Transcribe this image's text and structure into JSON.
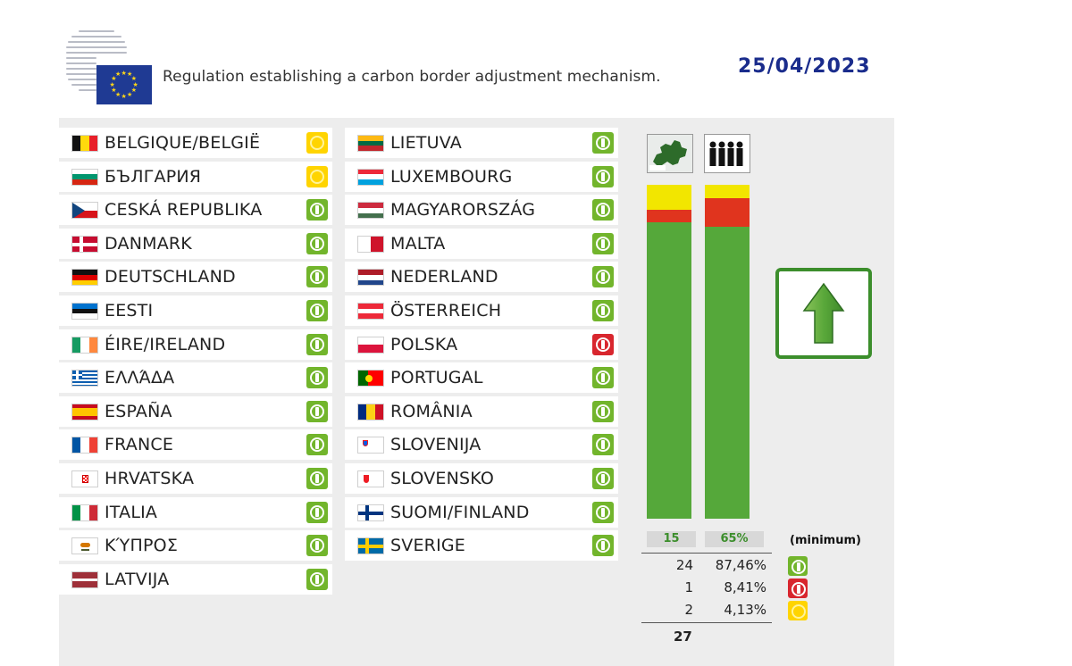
{
  "header": {
    "title": "Regulation establishing a carbon border adjustment mechanism.",
    "date": "25/04/2023"
  },
  "countries_left": [
    {
      "name": "BELGIQUE/BELGIË",
      "flag": "be",
      "vote": "abstain"
    },
    {
      "name": "БЪЛГАРИЯ",
      "flag": "bg",
      "vote": "abstain"
    },
    {
      "name": "CESKÁ REPUBLIKA",
      "flag": "cz",
      "vote": "yes"
    },
    {
      "name": "DANMARK",
      "flag": "dk",
      "vote": "yes"
    },
    {
      "name": "DEUTSCHLAND",
      "flag": "de",
      "vote": "yes"
    },
    {
      "name": "EESTI",
      "flag": "ee",
      "vote": "yes"
    },
    {
      "name": "ÉIRE/IRELAND",
      "flag": "ie",
      "vote": "yes"
    },
    {
      "name": "ΕΛΛΆΔΑ",
      "flag": "gr",
      "vote": "yes"
    },
    {
      "name": "ESPAÑA",
      "flag": "es",
      "vote": "yes"
    },
    {
      "name": "FRANCE",
      "flag": "fr",
      "vote": "yes"
    },
    {
      "name": "HRVATSKA",
      "flag": "hr",
      "vote": "yes"
    },
    {
      "name": "ITALIA",
      "flag": "it",
      "vote": "yes"
    },
    {
      "name": "ΚΎΠΡΟΣ",
      "flag": "cy",
      "vote": "yes"
    },
    {
      "name": "LATVIJA",
      "flag": "lv",
      "vote": "yes"
    }
  ],
  "countries_right": [
    {
      "name": "LIETUVA",
      "flag": "lt",
      "vote": "yes"
    },
    {
      "name": "LUXEMBOURG",
      "flag": "lu",
      "vote": "yes"
    },
    {
      "name": "MAGYARORSZÁG",
      "flag": "hu",
      "vote": "yes"
    },
    {
      "name": "MALTA",
      "flag": "mt",
      "vote": "yes"
    },
    {
      "name": "NEDERLAND",
      "flag": "nl",
      "vote": "yes"
    },
    {
      "name": "ÖSTERREICH",
      "flag": "at",
      "vote": "yes"
    },
    {
      "name": "POLSKA",
      "flag": "pl",
      "vote": "no"
    },
    {
      "name": "PORTUGAL",
      "flag": "pt",
      "vote": "yes"
    },
    {
      "name": "ROMÂNIA",
      "flag": "ro",
      "vote": "yes"
    },
    {
      "name": "SLOVENIJA",
      "flag": "si",
      "vote": "yes"
    },
    {
      "name": "SLOVENSKO",
      "flag": "sk",
      "vote": "yes"
    },
    {
      "name": "SUOMI/FINLAND",
      "flag": "fi",
      "vote": "yes"
    },
    {
      "name": "SVERIGE",
      "flag": "se",
      "vote": "yes"
    }
  ],
  "thresholds": {
    "states": "15",
    "population": "65%",
    "minimum_label": "(minimum)"
  },
  "summary": [
    {
      "count": "24",
      "percent": "87,46%",
      "vote": "yes"
    },
    {
      "count": "1",
      "percent": "8,41%",
      "vote": "no"
    },
    {
      "count": "2",
      "percent": "4,13%",
      "vote": "abstain"
    }
  ],
  "total": "27",
  "bars": {
    "member_states": {
      "abstain": 2,
      "no": 1,
      "yes": 24,
      "total": 27
    },
    "population": {
      "abstain": 4.13,
      "no": 8.41,
      "yes": 87.46,
      "total": 100
    }
  },
  "colors": {
    "yes": "#72b52c",
    "no": "#d8262e",
    "abstain": "#ffd400",
    "bar_yes": "#55a83a",
    "bar_no": "#e0341e",
    "bar_abstain": "#f2e600",
    "date": "#1a2c8c",
    "result": "#3c8e2c"
  },
  "icons": {
    "member_states": "europe-map-icon",
    "population": "people-icon",
    "result": "arrow-up-icon"
  },
  "result": "adopted"
}
